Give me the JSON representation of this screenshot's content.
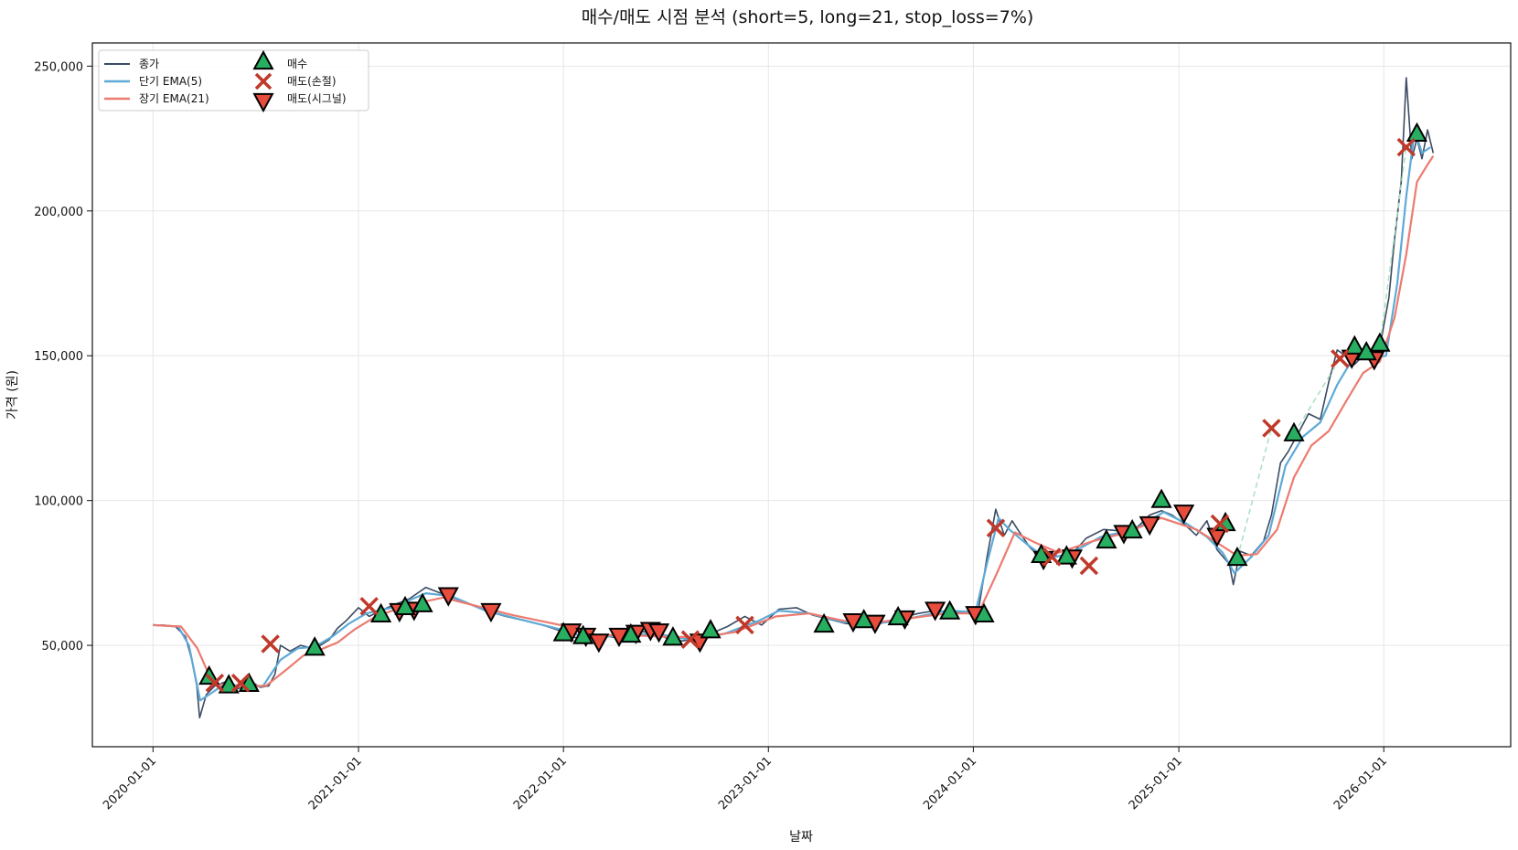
{
  "chart_data": {
    "type": "line",
    "title": "매수/매도 시점 분석 (short=5, long=21, stop_loss=7%)",
    "xlabel": "날짜",
    "ylabel": "가격 (원)",
    "xlim": [
      "2019-09-15",
      "2026-08-15"
    ],
    "ylim": [
      15000,
      258000
    ],
    "x_ticks": [
      "2020-01-01",
      "2021-01-01",
      "2022-01-01",
      "2023-01-01",
      "2024-01-01",
      "2025-01-01",
      "2026-01-01"
    ],
    "y_ticks": [
      50000,
      100000,
      150000,
      200000,
      250000
    ],
    "y_tick_labels": [
      "50,000",
      "100,000",
      "150,000",
      "200,000",
      "250,000"
    ],
    "grid": true,
    "legend_position": "top-left",
    "colors": {
      "close": "#3b4b63",
      "ema_short": "#5ea9d6",
      "ema_long": "#ec7b70",
      "buy": "#27ae60",
      "stop_loss": "#c0392b",
      "sell_signal": "#e74c3c",
      "trade_line": "#a9dfbf"
    },
    "series": [
      {
        "name": "종가",
        "x": [
          "2020-01-01",
          "2020-01-20",
          "2020-02-10",
          "2020-02-28",
          "2020-03-10",
          "2020-03-19",
          "2020-03-24",
          "2020-04-05",
          "2020-04-20",
          "2020-05-10",
          "2020-06-01",
          "2020-06-20",
          "2020-07-10",
          "2020-07-25",
          "2020-08-05",
          "2020-08-15",
          "2020-09-01",
          "2020-09-20",
          "2020-10-10",
          "2020-10-25",
          "2020-11-10",
          "2020-11-25",
          "2020-12-10",
          "2021-01-01",
          "2021-01-20",
          "2021-02-10",
          "2021-03-05",
          "2021-04-01",
          "2021-05-01",
          "2021-06-10",
          "2021-07-10",
          "2021-08-15",
          "2021-09-20",
          "2021-10-25",
          "2021-11-25",
          "2021-12-27",
          "2022-01-15",
          "2022-02-10",
          "2022-03-10",
          "2022-04-10",
          "2022-05-15",
          "2022-06-15",
          "2022-07-10",
          "2022-08-01",
          "2022-08-25",
          "2022-09-20",
          "2022-10-20",
          "2022-11-20",
          "2022-12-20",
          "2023-01-20",
          "2023-02-20",
          "2023-03-20",
          "2023-04-20",
          "2023-05-20",
          "2023-06-25",
          "2023-07-25",
          "2023-08-25",
          "2023-09-25",
          "2023-10-25",
          "2023-11-25",
          "2023-12-20",
          "2024-01-10",
          "2024-01-25",
          "2024-02-10",
          "2024-02-25",
          "2024-03-10",
          "2024-03-20",
          "2024-04-10",
          "2024-05-01",
          "2024-05-25",
          "2024-06-20",
          "2024-07-20",
          "2024-08-20",
          "2024-09-20",
          "2024-10-20",
          "2024-11-10",
          "2024-12-01",
          "2024-12-20",
          "2025-01-10",
          "2025-02-01",
          "2025-02-20",
          "2025-03-10",
          "2025-04-01",
          "2025-04-08",
          "2025-04-20",
          "2025-05-10",
          "2025-06-01",
          "2025-06-15",
          "2025-07-01",
          "2025-07-15",
          "2025-08-01",
          "2025-08-20",
          "2025-09-10",
          "2025-09-25",
          "2025-10-10",
          "2025-10-25",
          "2025-11-10",
          "2025-11-25",
          "2025-12-10",
          "2025-12-25",
          "2026-01-10",
          "2026-01-20",
          "2026-02-01",
          "2026-02-10",
          "2026-02-20",
          "2026-03-01",
          "2026-03-10",
          "2026-03-20",
          "2026-03-30"
        ],
        "values": [
          57000,
          57000,
          56500,
          53000,
          45000,
          36000,
          25000,
          33000,
          36000,
          37500,
          35000,
          38000,
          35500,
          36000,
          40000,
          50000,
          48000,
          50000,
          49000,
          50000,
          52000,
          56000,
          58500,
          63000,
          60000,
          62000,
          64000,
          66000,
          70000,
          67000,
          65000,
          62000,
          60000,
          58500,
          57000,
          55000,
          53000,
          52000,
          53500,
          52500,
          55000,
          54000,
          52000,
          51500,
          52500,
          54000,
          56500,
          60000,
          57000,
          62500,
          63000,
          60500,
          59000,
          57500,
          57500,
          58000,
          59500,
          61000,
          62000,
          61500,
          61000,
          62000,
          80000,
          97000,
          88000,
          93000,
          90000,
          84000,
          80000,
          81000,
          80500,
          87000,
          90000,
          89500,
          91000,
          95000,
          96500,
          95000,
          92000,
          88000,
          93000,
          83000,
          78000,
          71000,
          82500,
          81000,
          86000,
          95000,
          113000,
          117000,
          123000,
          130000,
          128000,
          141000,
          152000,
          150000,
          147000,
          150000,
          148000,
          153000,
          170000,
          190000,
          210000,
          246000,
          218000,
          225000,
          218000,
          228000,
          220000
        ]
      },
      {
        "name": "단기 EMA(5)",
        "x": [
          "2020-01-01",
          "2020-02-15",
          "2020-03-05",
          "2020-03-25",
          "2020-04-10",
          "2020-05-10",
          "2020-06-10",
          "2020-07-15",
          "2020-08-15",
          "2020-09-15",
          "2020-10-15",
          "2020-11-15",
          "2020-12-15",
          "2021-01-15",
          "2021-03-01",
          "2021-05-01",
          "2021-06-15",
          "2021-08-15",
          "2021-10-15",
          "2021-12-27",
          "2022-02-15",
          "2022-04-15",
          "2022-06-15",
          "2022-08-15",
          "2022-10-15",
          "2022-12-15",
          "2023-01-20",
          "2023-03-15",
          "2023-05-15",
          "2023-07-15",
          "2023-09-15",
          "2023-11-15",
          "2024-01-05",
          "2024-01-25",
          "2024-02-15",
          "2024-03-05",
          "2024-04-05",
          "2024-05-10",
          "2024-06-20",
          "2024-08-15",
          "2024-10-15",
          "2024-12-05",
          "2025-01-15",
          "2025-02-20",
          "2025-03-20",
          "2025-04-10",
          "2025-05-10",
          "2025-06-10",
          "2025-07-10",
          "2025-08-10",
          "2025-09-10",
          "2025-10-10",
          "2025-11-10",
          "2025-12-10",
          "2026-01-05",
          "2026-01-25",
          "2026-02-10",
          "2026-02-25",
          "2026-03-10",
          "2026-03-25"
        ],
        "values": [
          57000,
          56500,
          50000,
          31000,
          33000,
          37000,
          35500,
          36000,
          45000,
          49000,
          49500,
          53000,
          57500,
          61000,
          63000,
          68000,
          67000,
          62000,
          59000,
          55500,
          52500,
          53500,
          54000,
          52000,
          54000,
          58500,
          62000,
          61000,
          58000,
          57500,
          59500,
          62000,
          61500,
          78000,
          94000,
          90000,
          85000,
          80000,
          81500,
          87500,
          90000,
          96000,
          92000,
          87500,
          82000,
          75000,
          80500,
          88000,
          112000,
          122000,
          127000,
          140000,
          150000,
          149000,
          150000,
          175000,
          205000,
          228000,
          220000,
          222000
        ]
      },
      {
        "name": "장기 EMA(21)",
        "x": [
          "2020-01-01",
          "2020-02-20",
          "2020-03-20",
          "2020-04-15",
          "2020-05-15",
          "2020-06-20",
          "2020-07-20",
          "2020-08-25",
          "2020-09-25",
          "2020-10-25",
          "2020-11-25",
          "2020-12-25",
          "2021-02-01",
          "2021-04-01",
          "2021-06-01",
          "2021-08-01",
          "2021-10-01",
          "2021-12-27",
          "2022-03-01",
          "2022-05-01",
          "2022-07-01",
          "2022-09-01",
          "2022-11-01",
          "2023-01-15",
          "2023-03-15",
          "2023-05-15",
          "2023-07-15",
          "2023-09-15",
          "2023-11-15",
          "2024-01-10",
          "2024-02-10",
          "2024-03-15",
          "2024-04-20",
          "2024-06-01",
          "2024-08-01",
          "2024-10-01",
          "2024-12-01",
          "2025-02-01",
          "2025-04-15",
          "2025-05-20",
          "2025-06-25",
          "2025-07-25",
          "2025-08-25",
          "2025-09-25",
          "2025-10-25",
          "2025-11-25",
          "2025-12-25",
          "2026-01-20",
          "2026-02-10",
          "2026-03-01",
          "2026-03-20",
          "2026-03-30"
        ],
        "values": [
          57000,
          56500,
          49000,
          37500,
          35500,
          36000,
          36000,
          41500,
          46500,
          48500,
          51000,
          55500,
          60000,
          64000,
          66500,
          63500,
          60500,
          57000,
          53500,
          53500,
          53000,
          52800,
          54500,
          60000,
          61000,
          58500,
          58000,
          59500,
          61000,
          61000,
          74000,
          89000,
          85500,
          82000,
          86000,
          89000,
          94000,
          90000,
          81000,
          81500,
          90000,
          108000,
          119000,
          124000,
          134000,
          144000,
          148000,
          163000,
          185000,
          210000,
          216000,
          219000
        ]
      }
    ],
    "buy_points": [
      {
        "name": "매수",
        "x": [
          "2020-04-10",
          "2020-05-15",
          "2020-06-20",
          "2020-10-15",
          "2021-02-10",
          "2021-03-25",
          "2021-04-25",
          "2022-01-01",
          "2022-02-05",
          "2022-05-01",
          "2022-07-15",
          "2022-09-20",
          "2023-04-10",
          "2023-06-20",
          "2023-08-20",
          "2023-11-20",
          "2024-01-20",
          "2024-05-01",
          "2024-06-15",
          "2024-08-25",
          "2024-10-10",
          "2024-12-01",
          "2025-03-25",
          "2025-04-15",
          "2025-07-25",
          "2025-11-10",
          "2025-12-01",
          "2025-12-25",
          "2026-03-01"
        ],
        "values": [
          39000,
          36000,
          36500,
          49000,
          60500,
          63000,
          64000,
          54000,
          53000,
          53500,
          52500,
          55000,
          57000,
          58500,
          59500,
          61500,
          60500,
          81000,
          80500,
          86000,
          89500,
          100000,
          92000,
          80000,
          123000,
          153000,
          151000,
          154000,
          226500
        ]
      }
    ],
    "stop_loss_points": [
      {
        "name": "매도(손절)",
        "x": [
          "2020-04-20",
          "2020-06-05",
          "2020-07-28",
          "2021-01-20",
          "2022-08-15",
          "2022-11-20",
          "2024-02-10",
          "2024-05-20",
          "2024-07-25",
          "2025-03-15",
          "2025-06-15",
          "2025-10-15",
          "2026-02-10"
        ],
        "values": [
          37000,
          37000,
          50500,
          63500,
          52000,
          57000,
          90500,
          80500,
          77500,
          92000,
          125000,
          149000,
          222000
        ]
      }
    ],
    "sell_signal_points": [
      {
        "name": "매도(시그널)",
        "x": [
          "2021-03-15",
          "2021-04-10",
          "2021-06-10",
          "2021-08-25",
          "2022-01-15",
          "2022-02-10",
          "2022-03-05",
          "2022-04-10",
          "2022-05-10",
          "2022-06-05",
          "2022-06-20",
          "2022-09-01",
          "2023-06-01",
          "2023-07-10",
          "2023-09-01",
          "2023-10-25",
          "2024-01-05",
          "2024-05-05",
          "2024-06-25",
          "2024-09-25",
          "2024-11-10",
          "2025-01-10",
          "2025-03-10",
          "2025-11-05",
          "2025-12-15"
        ],
        "values": [
          62000,
          62500,
          67500,
          62000,
          55000,
          53500,
          51500,
          53500,
          54500,
          55500,
          55000,
          51500,
          58500,
          58000,
          59500,
          62500,
          61000,
          80000,
          80500,
          89000,
          92000,
          96000,
          88000,
          149500,
          149000
        ]
      }
    ]
  }
}
